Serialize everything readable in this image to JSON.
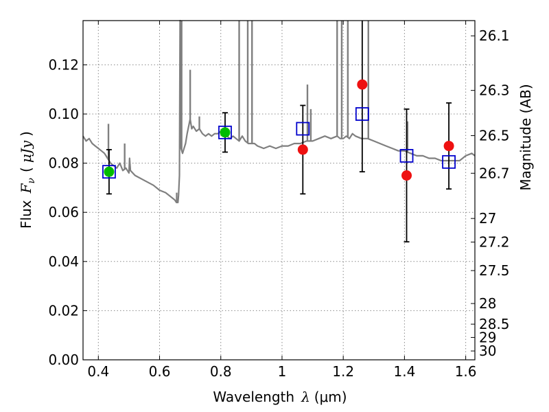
{
  "chart_data": {
    "type": "scatter",
    "xlabel": {
      "text": "Wavelength",
      "symbol": "λ",
      "unit": "(μm)"
    },
    "ylabel": {
      "text": "Flux",
      "symbol": "F",
      "sub": "ν",
      "unit": "μJy"
    },
    "right_ylabel": "Magnitude (AB)",
    "xlim": [
      0.35,
      1.63
    ],
    "ylim": [
      0.0,
      0.138
    ],
    "grid": true,
    "x_ticks": [
      0.4,
      0.6,
      0.8,
      1.0,
      1.2,
      1.4,
      1.6
    ],
    "x_tick_labels": [
      "0.4",
      "0.6",
      "0.8",
      "1",
      "1.2",
      "1.4",
      "1.6"
    ],
    "y_ticks": [
      0.0,
      0.02,
      0.04,
      0.06,
      0.08,
      0.1,
      0.12
    ],
    "y_tick_labels": [
      "0.00",
      "0.02",
      "0.04",
      "0.06",
      "0.08",
      "0.10",
      "0.12"
    ],
    "right_ticks": [
      {
        "label": "26.1",
        "flux": 0.1318
      },
      {
        "label": "26.3",
        "flux": 0.1096
      },
      {
        "label": "26.5",
        "flux": 0.0912
      },
      {
        "label": "26.7",
        "flux": 0.0759
      },
      {
        "label": "27",
        "flux": 0.0575
      },
      {
        "label": "27.2",
        "flux": 0.0479
      },
      {
        "label": "27.5",
        "flux": 0.0363
      },
      {
        "label": "28",
        "flux": 0.0229
      },
      {
        "label": "28.5",
        "flux": 0.0145
      },
      {
        "label": "29",
        "flux": 0.0091
      },
      {
        "label": "30",
        "flux": 0.0036
      }
    ],
    "colors": {
      "model": "#7f7f7f",
      "green": "#00bb00",
      "red": "#ee1111",
      "square": "#0000cc",
      "errorbar": "#000000",
      "grid": "#888888"
    },
    "model_spectrum": {
      "x": [
        0.35,
        0.36,
        0.37,
        0.38,
        0.39,
        0.4,
        0.41,
        0.42,
        0.425,
        0.43,
        0.435,
        0.44,
        0.45,
        0.46,
        0.47,
        0.48,
        0.49,
        0.5,
        0.502,
        0.505,
        0.52,
        0.55,
        0.58,
        0.6,
        0.62,
        0.64,
        0.65,
        0.655,
        0.66,
        0.662,
        0.665,
        0.667,
        0.67,
        0.675,
        0.68,
        0.685,
        0.69,
        0.7,
        0.705,
        0.71,
        0.72,
        0.73,
        0.74,
        0.75,
        0.76,
        0.77,
        0.78,
        0.79,
        0.8,
        0.81,
        0.82,
        0.83,
        0.84,
        0.85,
        0.86,
        0.87,
        0.88,
        0.89,
        0.9,
        0.91,
        0.92,
        0.94,
        0.96,
        0.98,
        1.0,
        1.02,
        1.04,
        1.06,
        1.08,
        1.1,
        1.12,
        1.14,
        1.16,
        1.18,
        1.19,
        1.2,
        1.21,
        1.22,
        1.23,
        1.24,
        1.26,
        1.28,
        1.3,
        1.32,
        1.34,
        1.36,
        1.38,
        1.4,
        1.42,
        1.44,
        1.46,
        1.48,
        1.5,
        1.52,
        1.54,
        1.56,
        1.58,
        1.6,
        1.62,
        1.63
      ],
      "y": [
        0.091,
        0.089,
        0.09,
        0.088,
        0.087,
        0.086,
        0.085,
        0.084,
        0.083,
        0.082,
        0.081,
        0.08,
        0.079,
        0.078,
        0.08,
        0.077,
        0.078,
        0.076,
        0.082,
        0.077,
        0.075,
        0.073,
        0.071,
        0.069,
        0.068,
        0.066,
        0.065,
        0.064,
        0.064,
        0.067,
        0.075,
        0.14,
        0.086,
        0.084,
        0.086,
        0.088,
        0.092,
        0.098,
        0.094,
        0.095,
        0.093,
        0.094,
        0.092,
        0.091,
        0.092,
        0.091,
        0.092,
        0.092,
        0.093,
        0.092,
        0.091,
        0.09,
        0.091,
        0.09,
        0.089,
        0.091,
        0.089,
        0.088,
        0.088,
        0.088,
        0.087,
        0.086,
        0.087,
        0.086,
        0.087,
        0.087,
        0.088,
        0.088,
        0.089,
        0.089,
        0.09,
        0.091,
        0.09,
        0.091,
        0.09,
        0.09,
        0.091,
        0.09,
        0.092,
        0.091,
        0.09,
        0.09,
        0.089,
        0.088,
        0.087,
        0.086,
        0.085,
        0.085,
        0.084,
        0.083,
        0.083,
        0.082,
        0.082,
        0.081,
        0.081,
        0.081,
        0.081,
        0.083,
        0.084,
        0.083
      ],
      "spikes": [
        {
          "x": 0.433,
          "top": 0.096
        },
        {
          "x": 0.486,
          "top": 0.088
        },
        {
          "x": 0.656,
          "top": 0.068
        },
        {
          "x": 0.668,
          "top": 0.14
        },
        {
          "x": 0.672,
          "top": 0.14
        },
        {
          "x": 0.7,
          "top": 0.118
        },
        {
          "x": 0.73,
          "top": 0.099
        },
        {
          "x": 0.86,
          "top": 0.14
        },
        {
          "x": 0.888,
          "top": 0.14
        },
        {
          "x": 0.902,
          "top": 0.14
        },
        {
          "x": 1.083,
          "top": 0.112
        },
        {
          "x": 1.094,
          "top": 0.102
        },
        {
          "x": 1.18,
          "top": 0.14
        },
        {
          "x": 1.195,
          "top": 0.14
        },
        {
          "x": 1.215,
          "top": 0.14
        },
        {
          "x": 1.282,
          "top": 0.14
        },
        {
          "x": 1.41,
          "top": 0.097
        }
      ]
    },
    "series": [
      {
        "marker": "circle-green",
        "points": [
          {
            "x": 0.435,
            "y": 0.0765,
            "err_low": 0.0675,
            "err_high": 0.0855
          },
          {
            "x": 0.814,
            "y": 0.0925,
            "err_low": 0.0845,
            "err_high": 0.1005
          }
        ]
      },
      {
        "marker": "circle-red",
        "points": [
          {
            "x": 1.068,
            "y": 0.0855,
            "err_low": 0.0675,
            "err_high": 0.1035
          },
          {
            "x": 1.262,
            "y": 0.112,
            "err_low": 0.0765,
            "err_high": 0.1475
          },
          {
            "x": 1.407,
            "y": 0.075,
            "err_low": 0.048,
            "err_high": 0.102
          },
          {
            "x": 1.545,
            "y": 0.087,
            "err_low": 0.0695,
            "err_high": 0.1045
          }
        ]
      },
      {
        "marker": "square-blue-open",
        "points": [
          {
            "x": 0.435,
            "y": 0.0765
          },
          {
            "x": 0.814,
            "y": 0.0925
          },
          {
            "x": 1.068,
            "y": 0.094
          },
          {
            "x": 1.262,
            "y": 0.1
          },
          {
            "x": 1.407,
            "y": 0.083
          },
          {
            "x": 1.545,
            "y": 0.0805
          }
        ]
      }
    ]
  }
}
